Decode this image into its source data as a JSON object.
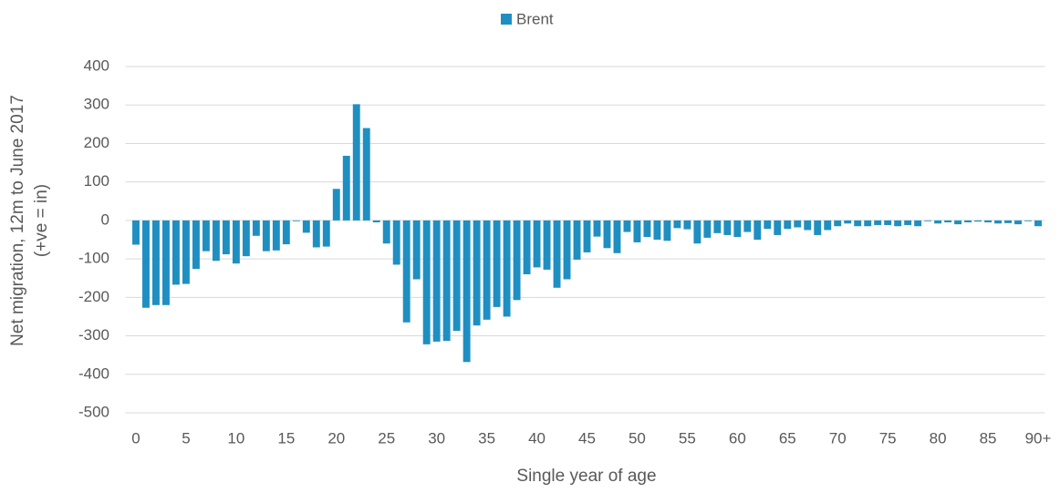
{
  "chart_data": {
    "type": "bar",
    "legend": "top",
    "ylabel": [
      "Net migration, 12m to June 2017",
      "(+ve = in)"
    ],
    "xlabel": "Single year of age",
    "categories": [
      "0",
      null,
      null,
      null,
      null,
      "5",
      null,
      null,
      null,
      null,
      "10",
      null,
      null,
      null,
      null,
      "15",
      null,
      null,
      null,
      null,
      "20",
      null,
      null,
      null,
      null,
      "25",
      null,
      null,
      null,
      null,
      "30",
      null,
      null,
      null,
      null,
      "35",
      null,
      null,
      null,
      null,
      "40",
      null,
      null,
      null,
      null,
      "45",
      null,
      null,
      null,
      null,
      "50",
      null,
      null,
      null,
      null,
      "55",
      null,
      null,
      null,
      null,
      "60",
      null,
      null,
      null,
      null,
      "65",
      null,
      null,
      null,
      null,
      "70",
      null,
      null,
      null,
      null,
      "75",
      null,
      null,
      null,
      null,
      "80",
      null,
      null,
      null,
      null,
      "85",
      null,
      null,
      null,
      null,
      "90+"
    ],
    "series": [
      {
        "name": "Brent",
        "color": "#1f8fc2",
        "values": [
          -63,
          -227,
          -220,
          -220,
          -167,
          -165,
          -126,
          -80,
          -105,
          -88,
          -112,
          -93,
          -40,
          -80,
          -78,
          -62,
          -2,
          -32,
          -70,
          -68,
          82,
          168,
          302,
          240,
          -5,
          -60,
          -115,
          -265,
          -153,
          -322,
          -315,
          -313,
          -287,
          -368,
          -273,
          -258,
          -225,
          -250,
          -207,
          -140,
          -122,
          -128,
          -175,
          -153,
          -102,
          -83,
          -42,
          -72,
          -85,
          -30,
          -57,
          -43,
          -50,
          -53,
          -20,
          -23,
          -60,
          -45,
          -33,
          -38,
          -43,
          -30,
          -50,
          -22,
          -38,
          -22,
          -18,
          -25,
          -38,
          -25,
          -15,
          -8,
          -15,
          -15,
          -12,
          -12,
          -15,
          -12,
          -15,
          -2,
          -8,
          -5,
          -10,
          -5,
          -3,
          -5,
          -8,
          -7,
          -10,
          -2,
          -15
        ]
      }
    ],
    "ylim": [
      -500,
      400
    ],
    "yticks": [
      -500,
      -400,
      -300,
      -200,
      -100,
      0,
      100,
      200,
      300,
      400
    ],
    "grid": true
  }
}
